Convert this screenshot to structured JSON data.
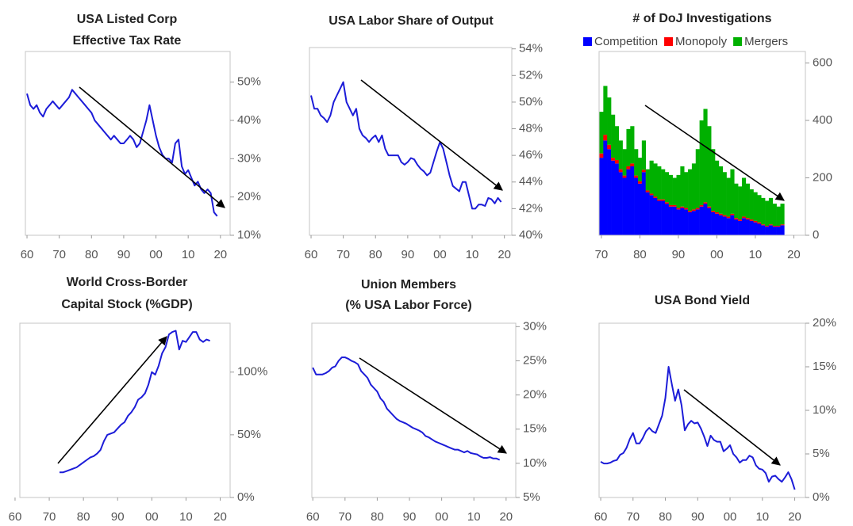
{
  "chart_data": [
    {
      "type": "line",
      "title": [
        "USA Listed Corp",
        "Effective Tax Rate"
      ],
      "color": "#1c1cd8",
      "x": [
        1960,
        1961,
        1962,
        1963,
        1964,
        1965,
        1966,
        1967,
        1968,
        1969,
        1970,
        1971,
        1972,
        1973,
        1974,
        1975,
        1976,
        1977,
        1978,
        1979,
        1980,
        1981,
        1982,
        1983,
        1984,
        1985,
        1986,
        1987,
        1988,
        1989,
        1990,
        1991,
        1992,
        1993,
        1994,
        1995,
        1996,
        1997,
        1998,
        1999,
        2000,
        2001,
        2002,
        2003,
        2004,
        2005,
        2006,
        2007,
        2008,
        2009,
        2010,
        2011,
        2012,
        2013,
        2014,
        2015,
        2016,
        2017,
        2018,
        2019
      ],
      "values": [
        47,
        44,
        43,
        44,
        42,
        41,
        43,
        44,
        45,
        44,
        43,
        44,
        45,
        46,
        48,
        47,
        46,
        45,
        44,
        43,
        42,
        40,
        39,
        38,
        37,
        36,
        35,
        36,
        35,
        34,
        34,
        35,
        36,
        35,
        33,
        34,
        37,
        40,
        44,
        40,
        36,
        33,
        31,
        30,
        30,
        29,
        34,
        35,
        28,
        26,
        27,
        25,
        23,
        24,
        22,
        21,
        22,
        21,
        16,
        15
      ],
      "xlim": [
        1959.5,
        2023
      ],
      "ylim": [
        10,
        58
      ],
      "xticks": [
        {
          "value": 1960,
          "label": "60"
        },
        {
          "value": 1970,
          "label": "70"
        },
        {
          "value": 1980,
          "label": "80"
        },
        {
          "value": 1990,
          "label": "90"
        },
        {
          "value": 2000,
          "label": "00"
        },
        {
          "value": 2010,
          "label": "10"
        },
        {
          "value": 2020,
          "label": "20"
        }
      ],
      "yticks": [
        {
          "value": 10,
          "label": "10%"
        },
        {
          "value": 20,
          "label": "20%"
        },
        {
          "value": 30,
          "label": "30%"
        },
        {
          "value": 40,
          "label": "40%"
        },
        {
          "value": 50,
          "label": "50%"
        }
      ]
    },
    {
      "type": "line",
      "title": [
        "USA Labor Share of Output"
      ],
      "color": "#1c1cd8",
      "x": [
        1960,
        1961,
        1962,
        1963,
        1964,
        1965,
        1966,
        1967,
        1968,
        1969,
        1970,
        1971,
        1972,
        1973,
        1974,
        1975,
        1976,
        1977,
        1978,
        1979,
        1980,
        1981,
        1982,
        1983,
        1984,
        1985,
        1986,
        1987,
        1988,
        1989,
        1990,
        1991,
        1992,
        1993,
        1994,
        1995,
        1996,
        1997,
        1998,
        1999,
        2000,
        2001,
        2002,
        2003,
        2004,
        2005,
        2006,
        2007,
        2008,
        2009,
        2010,
        2011,
        2012,
        2013,
        2014,
        2015,
        2016,
        2017,
        2018,
        2019
      ],
      "values": [
        50.5,
        49.5,
        49.5,
        49,
        48.8,
        48.5,
        49,
        50,
        50.5,
        51,
        51.5,
        50,
        49.5,
        49,
        49.5,
        48,
        47.5,
        47.3,
        47,
        47.3,
        47.5,
        47,
        47.5,
        46.5,
        46,
        46,
        46,
        46,
        45.5,
        45.3,
        45.5,
        45.8,
        45.7,
        45.3,
        45,
        44.8,
        44.5,
        44.7,
        45.5,
        46.3,
        47,
        46.5,
        45.5,
        44.5,
        43.7,
        43.5,
        43.3,
        44,
        44,
        43,
        42,
        42,
        42.3,
        42.3,
        42.2,
        42.8,
        42.7,
        42.4,
        42.8,
        42.5
      ],
      "xlim": [
        1959.5,
        2022.3
      ],
      "ylim": [
        40,
        54.1
      ],
      "xticks": [
        {
          "value": 1960,
          "label": "60"
        },
        {
          "value": 1970,
          "label": "70"
        },
        {
          "value": 1980,
          "label": "80"
        },
        {
          "value": 1990,
          "label": "90"
        },
        {
          "value": 2000,
          "label": "00"
        },
        {
          "value": 2010,
          "label": "10"
        },
        {
          "value": 2020,
          "label": "20"
        }
      ],
      "yticks": [
        {
          "value": 40,
          "label": "40%"
        },
        {
          "value": 42,
          "label": "42%"
        },
        {
          "value": 44,
          "label": "44%"
        },
        {
          "value": 46,
          "label": "46%"
        },
        {
          "value": 48,
          "label": "48%"
        },
        {
          "value": 50,
          "label": "50%"
        },
        {
          "value": 52,
          "label": "52%"
        },
        {
          "value": 54,
          "label": "54%"
        }
      ]
    },
    {
      "type": "bar",
      "stacked": true,
      "title": [
        "# of DoJ Investigations"
      ],
      "x": [
        1970,
        1971,
        1972,
        1973,
        1974,
        1975,
        1976,
        1977,
        1978,
        1979,
        1980,
        1981,
        1982,
        1983,
        1984,
        1985,
        1986,
        1987,
        1988,
        1989,
        1990,
        1991,
        1992,
        1993,
        1994,
        1995,
        1996,
        1997,
        1998,
        1999,
        2000,
        2001,
        2002,
        2003,
        2004,
        2005,
        2006,
        2007,
        2008,
        2009,
        2010,
        2011,
        2012,
        2013,
        2014,
        2015,
        2016,
        2017
      ],
      "series": [
        {
          "name": "Competition",
          "color": "#0000ff",
          "values": [
            270,
            330,
            300,
            260,
            250,
            220,
            200,
            230,
            240,
            200,
            180,
            220,
            150,
            140,
            130,
            120,
            120,
            110,
            100,
            100,
            90,
            95,
            90,
            80,
            85,
            90,
            100,
            110,
            95,
            80,
            75,
            70,
            65,
            60,
            70,
            55,
            50,
            60,
            55,
            50,
            45,
            40,
            35,
            30,
            35,
            30,
            30,
            35
          ]
        },
        {
          "name": "Monopoly",
          "color": "#ff0000",
          "values": [
            15,
            20,
            15,
            10,
            12,
            10,
            8,
            10,
            10,
            8,
            8,
            8,
            6,
            5,
            5,
            5,
            5,
            5,
            5,
            5,
            5,
            5,
            5,
            5,
            5,
            5,
            5,
            5,
            5,
            5,
            5,
            5,
            5,
            5,
            5,
            5,
            5,
            5,
            5,
            5,
            5,
            5,
            3,
            3,
            3,
            3,
            3,
            3
          ]
        },
        {
          "name": "Mergers",
          "color": "#00b000",
          "values": [
            145,
            170,
            165,
            150,
            118,
            100,
            92,
            130,
            130,
            92,
            82,
            102,
            74,
            115,
            115,
            115,
            105,
            105,
            105,
            95,
            115,
            140,
            125,
            145,
            160,
            205,
            295,
            325,
            280,
            215,
            180,
            165,
            150,
            135,
            155,
            120,
            115,
            135,
            120,
            105,
            100,
            95,
            92,
            87,
            92,
            77,
            67,
            72
          ]
        }
      ],
      "xlim": [
        1969.4,
        2023
      ],
      "ylim": [
        0,
        640
      ],
      "xticks": [
        {
          "value": 1970,
          "label": "70"
        },
        {
          "value": 1980,
          "label": "80"
        },
        {
          "value": 1990,
          "label": "90"
        },
        {
          "value": 2000,
          "label": "00"
        },
        {
          "value": 2010,
          "label": "10"
        },
        {
          "value": 2020,
          "label": "20"
        }
      ],
      "yticks": [
        0,
        200,
        400,
        600
      ],
      "legend": "top"
    },
    {
      "type": "line",
      "title": [
        "World Cross-Border",
        "Capital Stock (%GDP)"
      ],
      "color": "#1c1cd8",
      "x": [
        1973,
        1974,
        1975,
        1976,
        1977,
        1978,
        1979,
        1980,
        1981,
        1982,
        1983,
        1984,
        1985,
        1986,
        1987,
        1988,
        1989,
        1990,
        1991,
        1992,
        1993,
        1994,
        1995,
        1996,
        1997,
        1998,
        1999,
        2000,
        2001,
        2002,
        2003,
        2004,
        2005,
        2006,
        2007,
        2008,
        2009,
        2010,
        2011,
        2012,
        2013,
        2014,
        2015,
        2016,
        2017
      ],
      "values": [
        20,
        20,
        21,
        22,
        23,
        24,
        26,
        28,
        30,
        32,
        33,
        35,
        38,
        45,
        50,
        51,
        52,
        55,
        58,
        60,
        65,
        68,
        72,
        78,
        80,
        83,
        90,
        100,
        98,
        105,
        115,
        120,
        130,
        132,
        133,
        118,
        125,
        124,
        128,
        132,
        132,
        126,
        124,
        126,
        125
      ],
      "xlim": [
        1961.4,
        2022.9
      ],
      "ylim": [
        0,
        139
      ],
      "xticks": [
        {
          "value": 1960,
          "label": "60"
        },
        {
          "value": 1970,
          "label": "70"
        },
        {
          "value": 1980,
          "label": "80"
        },
        {
          "value": 1990,
          "label": "90"
        },
        {
          "value": 2000,
          "label": "00"
        },
        {
          "value": 2010,
          "label": "10"
        },
        {
          "value": 2020,
          "label": "20"
        }
      ],
      "yticks": [
        {
          "value": 0,
          "label": "0%"
        },
        {
          "value": 50,
          "label": "50%"
        },
        {
          "value": 100,
          "label": "100%"
        }
      ]
    },
    {
      "type": "line",
      "title": [
        "Union Members",
        "(% USA Labor Force)"
      ],
      "color": "#1c1cd8",
      "x": [
        1960,
        1961,
        1962,
        1963,
        1964,
        1965,
        1966,
        1967,
        1968,
        1969,
        1970,
        1971,
        1972,
        1973,
        1974,
        1975,
        1976,
        1977,
        1978,
        1979,
        1980,
        1981,
        1982,
        1983,
        1984,
        1985,
        1986,
        1987,
        1988,
        1989,
        1990,
        1991,
        1992,
        1993,
        1994,
        1995,
        1996,
        1997,
        1998,
        1999,
        2000,
        2001,
        2002,
        2003,
        2004,
        2005,
        2006,
        2007,
        2008,
        2009,
        2010,
        2011,
        2012,
        2013,
        2014,
        2015,
        2016,
        2017,
        2018
      ],
      "values": [
        24,
        23,
        23,
        23,
        23.2,
        23.5,
        24,
        24.2,
        25,
        25.5,
        25.5,
        25.3,
        25,
        24.8,
        24.5,
        23.5,
        23,
        22.5,
        21.5,
        21,
        20.5,
        19.5,
        19,
        18,
        17.5,
        17,
        16.5,
        16.2,
        16,
        15.8,
        15.5,
        15.2,
        15,
        14.8,
        14.5,
        14,
        13.8,
        13.5,
        13.2,
        13,
        12.8,
        12.6,
        12.4,
        12.2,
        12,
        12,
        11.8,
        11.6,
        11.8,
        11.5,
        11.4,
        11.3,
        11,
        10.8,
        10.8,
        10.9,
        10.7,
        10.7,
        10.5
      ],
      "xlim": [
        1959.7,
        2023
      ],
      "ylim": [
        5,
        30.5
      ],
      "xticks": [
        {
          "value": 1960,
          "label": "60"
        },
        {
          "value": 1970,
          "label": "70"
        },
        {
          "value": 1980,
          "label": "80"
        },
        {
          "value": 1990,
          "label": "90"
        },
        {
          "value": 2000,
          "label": "00"
        },
        {
          "value": 2010,
          "label": "10"
        },
        {
          "value": 2020,
          "label": "20"
        }
      ],
      "yticks": [
        {
          "value": 5,
          "label": "5%"
        },
        {
          "value": 10,
          "label": "10%"
        },
        {
          "value": 15,
          "label": "15%"
        },
        {
          "value": 20,
          "label": "20%"
        },
        {
          "value": 25,
          "label": "25%"
        },
        {
          "value": 30,
          "label": "30%"
        }
      ]
    },
    {
      "type": "line",
      "title": [
        "USA Bond Yield"
      ],
      "color": "#1c1cd8",
      "x": [
        1960,
        1961,
        1962,
        1963,
        1964,
        1965,
        1966,
        1967,
        1968,
        1969,
        1970,
        1971,
        1972,
        1973,
        1974,
        1975,
        1976,
        1977,
        1978,
        1979,
        1980,
        1981,
        1982,
        1983,
        1984,
        1985,
        1986,
        1987,
        1988,
        1989,
        1990,
        1991,
        1992,
        1993,
        1994,
        1995,
        1996,
        1997,
        1998,
        1999,
        2000,
        2001,
        2002,
        2003,
        2004,
        2005,
        2006,
        2007,
        2008,
        2009,
        2010,
        2011,
        2012,
        2013,
        2014,
        2015,
        2016,
        2017,
        2018,
        2019,
        2020
      ],
      "values": [
        4.1,
        3.9,
        3.9,
        4,
        4.2,
        4.3,
        4.9,
        5.1,
        5.7,
        6.7,
        7.4,
        6.2,
        6.2,
        6.8,
        7.6,
        8,
        7.6,
        7.4,
        8.4,
        9.4,
        11.4,
        15,
        13,
        11.1,
        12.4,
        10.6,
        7.7,
        8.4,
        8.8,
        8.5,
        8.6,
        7.9,
        7,
        5.9,
        7.1,
        6.6,
        6.4,
        6.4,
        5.3,
        5.6,
        6,
        5,
        4.6,
        4,
        4.3,
        4.3,
        4.8,
        4.6,
        3.7,
        3.3,
        3.2,
        2.8,
        1.8,
        2.4,
        2.5,
        2.1,
        1.8,
        2.3,
        2.9,
        2.1,
        0.9
      ],
      "xlim": [
        1959.5,
        2023.3
      ],
      "ylim": [
        0,
        20
      ],
      "xticks": [
        {
          "value": 1960,
          "label": "60"
        },
        {
          "value": 1970,
          "label": "70"
        },
        {
          "value": 1980,
          "label": "80"
        },
        {
          "value": 1990,
          "label": "90"
        },
        {
          "value": 2000,
          "label": "00"
        },
        {
          "value": 2010,
          "label": "10"
        },
        {
          "value": 2020,
          "label": "20"
        }
      ],
      "yticks": [
        {
          "value": 0,
          "label": "0%"
        },
        {
          "value": 5,
          "label": "5%"
        },
        {
          "value": 10,
          "label": "10%"
        },
        {
          "value": 15,
          "label": "15%"
        },
        {
          "value": 20,
          "label": "20%"
        }
      ]
    }
  ]
}
